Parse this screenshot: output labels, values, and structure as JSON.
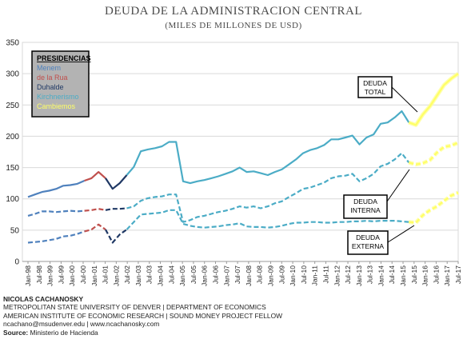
{
  "chart_data": {
    "type": "line",
    "title": "DEUDA DE LA ADMINISTRACION CENTRAL",
    "subtitle": "(MILES DE MILLONES DE USD)",
    "ylim": [
      0,
      350
    ],
    "y_ticks": [
      "0",
      "50",
      "100",
      "150",
      "200",
      "250",
      "300",
      "350"
    ],
    "x_ticks": [
      "Jan-98",
      "Jul-98",
      "Jan-99",
      "Jul-99",
      "Jan-00",
      "Jul-00",
      "Jan-01",
      "Jul-01",
      "Jan-02",
      "Jul-02",
      "Jan-03",
      "Jul-03",
      "Jan-04",
      "Jul-04",
      "Jan-05",
      "Jul-05",
      "Jan-06",
      "Jul-06",
      "Jan-07",
      "Jul-07",
      "Jan-08",
      "Jul-08",
      "Jan-09",
      "Jul-09",
      "Jan-10",
      "Jul-10",
      "Jan-11",
      "Jul-11",
      "Jan-12",
      "Jul-12",
      "Jan-13",
      "Jul-13",
      "Jan-14",
      "Jul-14",
      "Jan-15",
      "Jul-15",
      "Jan-16",
      "Jul-16",
      "Jan-17",
      "Jul-17"
    ],
    "grid": "horizontal",
    "legend": {
      "title": "PRESIDENCIAS",
      "placement": "top-left",
      "entries": [
        {
          "name": "Menem",
          "color": "#4f81bd"
        },
        {
          "name": "de la Rua",
          "color": "#c0504d"
        },
        {
          "name": "Duhalde",
          "color": "#1f3864"
        },
        {
          "name": "Kirchnerismo",
          "color": "#4bacc6"
        },
        {
          "name": "Cambiemos",
          "color": "#ffff66"
        }
      ]
    },
    "annotations": [
      "DEUDA\nTOTAL",
      "DEUDA\nINTERNA",
      "DEUDA\nEXTERNA"
    ],
    "series": [
      {
        "name": "DEUDA TOTAL",
        "style": "solid",
        "points": [
          [
            0,
            103
          ],
          [
            1,
            107
          ],
          [
            2,
            111
          ],
          [
            3,
            113
          ],
          [
            4,
            116
          ],
          [
            5,
            121
          ],
          [
            6,
            122
          ],
          [
            7,
            124
          ],
          [
            8,
            129
          ],
          [
            9,
            133
          ],
          [
            10,
            143
          ],
          [
            11,
            133
          ],
          [
            12,
            116
          ],
          [
            13,
            125
          ],
          [
            14,
            138
          ],
          [
            15,
            151
          ],
          [
            16,
            176
          ],
          [
            17,
            179
          ],
          [
            18,
            181
          ],
          [
            19,
            184
          ],
          [
            20,
            191
          ],
          [
            21,
            191
          ],
          [
            22,
            128
          ],
          [
            23,
            125
          ],
          [
            24,
            128
          ],
          [
            25,
            130
          ],
          [
            26,
            133
          ],
          [
            27,
            136
          ],
          [
            28,
            140
          ],
          [
            29,
            144
          ],
          [
            30,
            150
          ],
          [
            31,
            143
          ],
          [
            32,
            144
          ],
          [
            33,
            141
          ],
          [
            34,
            138
          ],
          [
            35,
            143
          ],
          [
            36,
            147
          ],
          [
            37,
            155
          ],
          [
            38,
            163
          ],
          [
            39,
            173
          ],
          [
            40,
            178
          ],
          [
            41,
            181
          ],
          [
            42,
            186
          ],
          [
            43,
            195
          ],
          [
            44,
            195
          ],
          [
            45,
            198
          ],
          [
            46,
            201
          ],
          [
            47,
            187
          ],
          [
            48,
            198
          ],
          [
            49,
            203
          ],
          [
            50,
            220
          ],
          [
            51,
            222
          ],
          [
            52,
            230
          ],
          [
            53,
            240
          ],
          [
            54,
            222
          ],
          [
            55,
            218
          ],
          [
            56,
            235
          ],
          [
            57,
            248
          ],
          [
            58,
            265
          ],
          [
            59,
            282
          ],
          [
            60,
            292
          ],
          [
            61,
            300
          ]
        ]
      },
      {
        "name": "DEUDA INTERNA",
        "style": "dashed",
        "points": [
          [
            0,
            73
          ],
          [
            1,
            76
          ],
          [
            2,
            80
          ],
          [
            3,
            80
          ],
          [
            4,
            79
          ],
          [
            5,
            80
          ],
          [
            6,
            81
          ],
          [
            7,
            80
          ],
          [
            8,
            81
          ],
          [
            9,
            82
          ],
          [
            10,
            84
          ],
          [
            11,
            82
          ],
          [
            12,
            84
          ],
          [
            13,
            84
          ],
          [
            14,
            85
          ],
          [
            15,
            88
          ],
          [
            16,
            97
          ],
          [
            17,
            101
          ],
          [
            18,
            103
          ],
          [
            19,
            104
          ],
          [
            20,
            107
          ],
          [
            21,
            107
          ],
          [
            22,
            63
          ],
          [
            23,
            66
          ],
          [
            24,
            71
          ],
          [
            25,
            73
          ],
          [
            26,
            76
          ],
          [
            27,
            79
          ],
          [
            28,
            81
          ],
          [
            29,
            84
          ],
          [
            30,
            88
          ],
          [
            31,
            86
          ],
          [
            32,
            88
          ],
          [
            33,
            85
          ],
          [
            34,
            88
          ],
          [
            35,
            93
          ],
          [
            36,
            96
          ],
          [
            37,
            103
          ],
          [
            38,
            109
          ],
          [
            39,
            116
          ],
          [
            40,
            118
          ],
          [
            41,
            122
          ],
          [
            42,
            126
          ],
          [
            43,
            133
          ],
          [
            44,
            136
          ],
          [
            45,
            137
          ],
          [
            46,
            140
          ],
          [
            47,
            128
          ],
          [
            48,
            133
          ],
          [
            49,
            140
          ],
          [
            50,
            152
          ],
          [
            51,
            156
          ],
          [
            52,
            163
          ],
          [
            53,
            173
          ],
          [
            54,
            158
          ],
          [
            55,
            155
          ],
          [
            56,
            157
          ],
          [
            57,
            162
          ],
          [
            58,
            174
          ],
          [
            59,
            183
          ],
          [
            60,
            185
          ],
          [
            61,
            190
          ]
        ]
      },
      {
        "name": "DEUDA EXTERNA",
        "style": "dashed",
        "points": [
          [
            0,
            30
          ],
          [
            1,
            31
          ],
          [
            2,
            32
          ],
          [
            3,
            34
          ],
          [
            4,
            36
          ],
          [
            5,
            40
          ],
          [
            6,
            41
          ],
          [
            7,
            44
          ],
          [
            8,
            48
          ],
          [
            9,
            51
          ],
          [
            10,
            59
          ],
          [
            11,
            51
          ],
          [
            12,
            30
          ],
          [
            13,
            43
          ],
          [
            14,
            51
          ],
          [
            15,
            63
          ],
          [
            16,
            75
          ],
          [
            17,
            76
          ],
          [
            18,
            77
          ],
          [
            19,
            78
          ],
          [
            20,
            82
          ],
          [
            21,
            82
          ],
          [
            22,
            60
          ],
          [
            23,
            57
          ],
          [
            24,
            55
          ],
          [
            25,
            54
          ],
          [
            26,
            55
          ],
          [
            27,
            56
          ],
          [
            28,
            58
          ],
          [
            29,
            59
          ],
          [
            30,
            61
          ],
          [
            31,
            56
          ],
          [
            32,
            55
          ],
          [
            33,
            55
          ],
          [
            34,
            54
          ],
          [
            35,
            55
          ],
          [
            36,
            57
          ],
          [
            37,
            60
          ],
          [
            38,
            62
          ],
          [
            39,
            62
          ],
          [
            40,
            63
          ],
          [
            41,
            63
          ],
          [
            42,
            62
          ],
          [
            43,
            62
          ],
          [
            44,
            63
          ],
          [
            45,
            63
          ],
          [
            46,
            64
          ],
          [
            47,
            64
          ],
          [
            48,
            65
          ],
          [
            49,
            64
          ],
          [
            50,
            65
          ],
          [
            51,
            65
          ],
          [
            52,
            65
          ],
          [
            53,
            64
          ],
          [
            54,
            63
          ],
          [
            55,
            62
          ],
          [
            56,
            74
          ],
          [
            57,
            82
          ],
          [
            58,
            88
          ],
          [
            59,
            97
          ],
          [
            60,
            105
          ],
          [
            61,
            110
          ]
        ]
      }
    ],
    "segments": [
      {
        "name": "Menem",
        "from": 0,
        "to": 8
      },
      {
        "name": "de la Rua",
        "from": 8,
        "to": 11
      },
      {
        "name": "Duhalde",
        "from": 11,
        "to": 14
      },
      {
        "name": "Kirchnerismo",
        "from": 14,
        "to": 54
      },
      {
        "name": "Cambiemos",
        "from": 54,
        "to": 61
      }
    ]
  },
  "footer": {
    "author": "NICOLAS CACHANOSKY",
    "line1": "METROPOLITAN STATE UNIVERSITY OF DENVER | DEPARTMENT OF ECONOMICS",
    "line2": "AMERICAN INSTITUTE OF ECONOMIC RESEARCH | SOUND MONEY PROJECT FELLOW",
    "line3": "ncachano@msudenver.edu  |  www.ncachanosky.com",
    "source_label": "Source:",
    "source_text": " Ministerio de Hacienda"
  }
}
